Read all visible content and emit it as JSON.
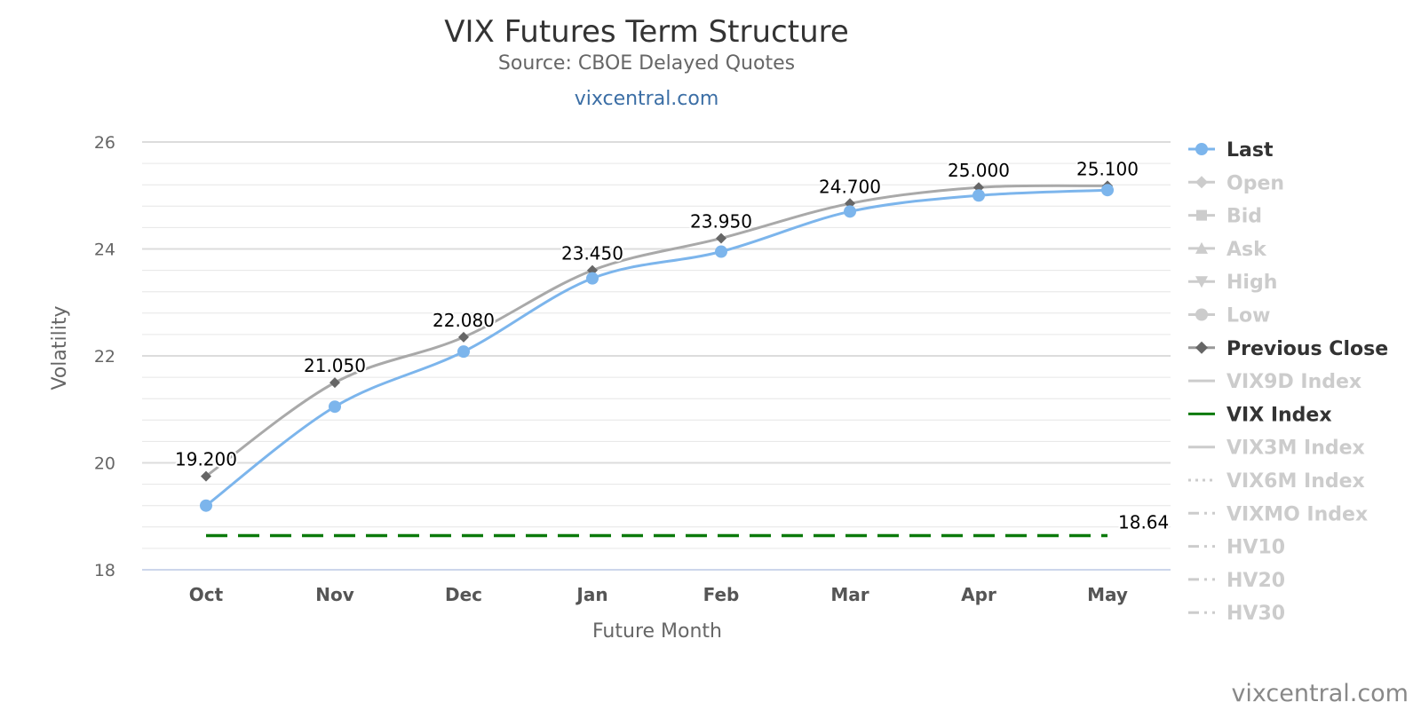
{
  "chart_data": {
    "type": "line",
    "title": "VIX Futures Term Structure",
    "subtitle": "Source: CBOE Delayed Quotes",
    "link_text": "vixcentral.com",
    "credit": "vixcentral.com",
    "xlabel": "Future Month",
    "ylabel": "Volatility",
    "categories": [
      "Oct",
      "Nov",
      "Dec",
      "Jan",
      "Feb",
      "Mar",
      "Apr",
      "May"
    ],
    "ylim": [
      18,
      26
    ],
    "yticks": [
      "18",
      "20",
      "22",
      "24",
      "26"
    ],
    "grid": true,
    "legend_position": "right",
    "series": [
      {
        "name": "Last",
        "values": [
          19.2,
          21.05,
          22.08,
          23.45,
          23.95,
          24.7,
          25.0,
          25.1
        ],
        "labels": [
          "19.200",
          "21.050",
          "22.080",
          "23.450",
          "23.950",
          "24.700",
          "25.000",
          "25.100"
        ],
        "color": "#7cb5ec",
        "marker": "circle"
      },
      {
        "name": "Previous Close",
        "values": [
          19.75,
          21.5,
          22.35,
          23.6,
          24.2,
          24.85,
          25.15,
          25.18
        ],
        "color": "#a9a9a9",
        "marker": "diamond"
      },
      {
        "name": "VIX Index",
        "value": 18.64,
        "label": "18.64",
        "color": "#0b7a0b",
        "style": "dashed"
      }
    ],
    "legend": [
      {
        "name": "Last",
        "symbol": "circle-line",
        "active": true
      },
      {
        "name": "Open",
        "symbol": "diamond-line",
        "active": false
      },
      {
        "name": "Bid",
        "symbol": "square-line",
        "active": false
      },
      {
        "name": "Ask",
        "symbol": "triangle-line",
        "active": false
      },
      {
        "name": "High",
        "symbol": "triangle-down-line",
        "active": false
      },
      {
        "name": "Low",
        "symbol": "circle-line",
        "active": false
      },
      {
        "name": "Previous Close",
        "symbol": "diamond-line",
        "active": true
      },
      {
        "name": "VIX9D Index",
        "symbol": "line",
        "active": false
      },
      {
        "name": "VIX Index",
        "symbol": "line",
        "active": true
      },
      {
        "name": "VIX3M Index",
        "symbol": "line",
        "active": false
      },
      {
        "name": "VIX6M Index",
        "symbol": "dotted-line",
        "active": false
      },
      {
        "name": "VIXMO Index",
        "symbol": "dashdot-line",
        "active": false
      },
      {
        "name": "HV10",
        "symbol": "dashdot-line",
        "active": false
      },
      {
        "name": "HV20",
        "symbol": "dashdot-line",
        "active": false
      },
      {
        "name": "HV30",
        "symbol": "dashdot-line",
        "active": false
      }
    ],
    "colors": {
      "active_text": "#333333",
      "inactive": "#cccccc",
      "grid": "#e6e6e6",
      "axis": "#ccd6eb"
    }
  }
}
